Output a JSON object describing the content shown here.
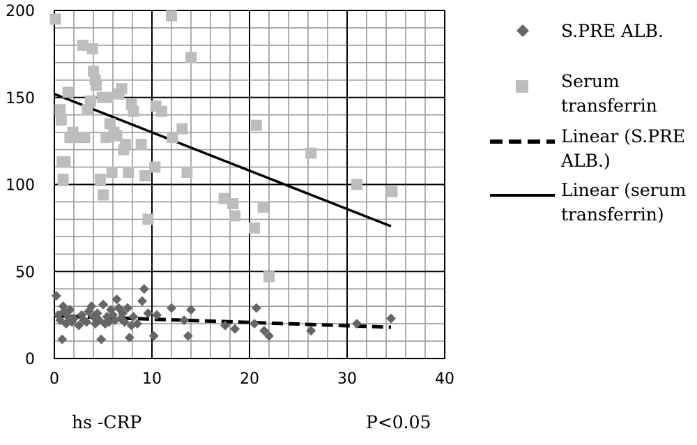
{
  "chart_data": {
    "type": "scatter",
    "xlim": [
      0,
      40
    ],
    "ylim": [
      0,
      200
    ],
    "x_ticks": [
      "0",
      "10",
      "20",
      "30",
      "40"
    ],
    "y_ticks": [
      "0",
      "50",
      "100",
      "150",
      "200"
    ],
    "x_minor_step": 2,
    "y_minor_step": 10,
    "grid": true,
    "legend_position": "right",
    "annotations": {
      "xlabel_note": "hs -CRP",
      "pvalue_note": "P<0.05"
    },
    "series": [
      {
        "name": "S.PRE ALB.",
        "marker": "diamond",
        "color": "#666666",
        "points": [
          [
            0.2,
            36
          ],
          [
            0.4,
            25
          ],
          [
            0.6,
            22
          ],
          [
            0.8,
            11
          ],
          [
            0.9,
            30
          ],
          [
            1,
            27
          ],
          [
            1.2,
            20
          ],
          [
            1.4,
            24
          ],
          [
            1.6,
            28
          ],
          [
            1.8,
            21
          ],
          [
            2,
            23
          ],
          [
            2.5,
            19
          ],
          [
            2.8,
            25
          ],
          [
            3,
            22
          ],
          [
            3.3,
            21
          ],
          [
            3.5,
            27
          ],
          [
            3.8,
            30
          ],
          [
            4,
            24
          ],
          [
            4.2,
            20
          ],
          [
            4.4,
            26
          ],
          [
            4.6,
            22
          ],
          [
            4.8,
            11
          ],
          [
            5,
            31
          ],
          [
            5.2,
            20
          ],
          [
            5.4,
            24
          ],
          [
            5.6,
            21
          ],
          [
            5.8,
            28
          ],
          [
            6,
            25
          ],
          [
            6.2,
            22
          ],
          [
            6.4,
            34
          ],
          [
            6.6,
            29
          ],
          [
            6.8,
            23
          ],
          [
            7,
            26
          ],
          [
            7.2,
            21
          ],
          [
            7.5,
            29
          ],
          [
            7.7,
            12
          ],
          [
            7.9,
            19
          ],
          [
            8.1,
            24
          ],
          [
            8.5,
            20
          ],
          [
            9,
            33
          ],
          [
            9.2,
            40
          ],
          [
            9.6,
            26
          ],
          [
            10.2,
            13
          ],
          [
            10.5,
            25
          ],
          [
            12,
            29
          ],
          [
            13.3,
            22
          ],
          [
            13.7,
            13
          ],
          [
            14,
            28
          ],
          [
            17.5,
            19
          ],
          [
            18.5,
            17
          ],
          [
            20.5,
            20
          ],
          [
            20.7,
            29
          ],
          [
            21.5,
            16
          ],
          [
            22,
            13
          ],
          [
            26.3,
            16
          ],
          [
            31,
            20
          ],
          [
            34.5,
            23
          ]
        ]
      },
      {
        "name": "Serum transferrin",
        "marker": "square",
        "color": "#bdbdbd",
        "points": [
          [
            0.1,
            195
          ],
          [
            0.6,
            143
          ],
          [
            0.7,
            137
          ],
          [
            0.8,
            113
          ],
          [
            0.9,
            103
          ],
          [
            1.1,
            113
          ],
          [
            1.4,
            153
          ],
          [
            1.6,
            127
          ],
          [
            1.9,
            130
          ],
          [
            2.2,
            127
          ],
          [
            2.9,
            180
          ],
          [
            3.1,
            127
          ],
          [
            3.4,
            143
          ],
          [
            3.7,
            148
          ],
          [
            3.9,
            178
          ],
          [
            4,
            165
          ],
          [
            4.2,
            160
          ],
          [
            4.3,
            157
          ],
          [
            4.7,
            103
          ],
          [
            4.9,
            150
          ],
          [
            5,
            94
          ],
          [
            5.3,
            127
          ],
          [
            5.5,
            150
          ],
          [
            5.7,
            135
          ],
          [
            5.9,
            107
          ],
          [
            6.1,
            130
          ],
          [
            6.4,
            128
          ],
          [
            6.6,
            152
          ],
          [
            6.9,
            155
          ],
          [
            7.1,
            120
          ],
          [
            7.3,
            123
          ],
          [
            7.6,
            107
          ],
          [
            7.9,
            146
          ],
          [
            8.1,
            142
          ],
          [
            8.9,
            123
          ],
          [
            9.3,
            105
          ],
          [
            9.6,
            80
          ],
          [
            10.3,
            110
          ],
          [
            10.4,
            145
          ],
          [
            11,
            142
          ],
          [
            12,
            197
          ],
          [
            12.1,
            127
          ],
          [
            13.1,
            132
          ],
          [
            13.6,
            107
          ],
          [
            14,
            173
          ],
          [
            17.4,
            92
          ],
          [
            18.3,
            89
          ],
          [
            18.5,
            82
          ],
          [
            20.5,
            75
          ],
          [
            20.7,
            134
          ],
          [
            21.4,
            87
          ],
          [
            22,
            47
          ],
          [
            26.3,
            118
          ],
          [
            31,
            100
          ],
          [
            34.6,
            96
          ]
        ]
      }
    ],
    "trendlines": [
      {
        "name": "Linear (S.PRE ALB.)",
        "style": "dashed",
        "color": "#000000",
        "x": [
          0,
          34.5
        ],
        "y": [
          24.5,
          18
        ]
      },
      {
        "name": "Linear (serum transferrin)",
        "style": "solid",
        "color": "#000000",
        "x": [
          0,
          34.5
        ],
        "y": [
          152,
          76
        ]
      }
    ],
    "legend": [
      {
        "symbol": "diamond",
        "lines": [
          "S.PRE ALB."
        ]
      },
      {
        "symbol": "square",
        "lines": [
          "Serum",
          "transferrin"
        ]
      },
      {
        "symbol": "dashed-line",
        "lines": [
          "Linear (S.PRE",
          "ALB.)"
        ]
      },
      {
        "symbol": "solid-line",
        "lines": [
          "Linear (serum",
          "transferrin)"
        ]
      }
    ]
  }
}
